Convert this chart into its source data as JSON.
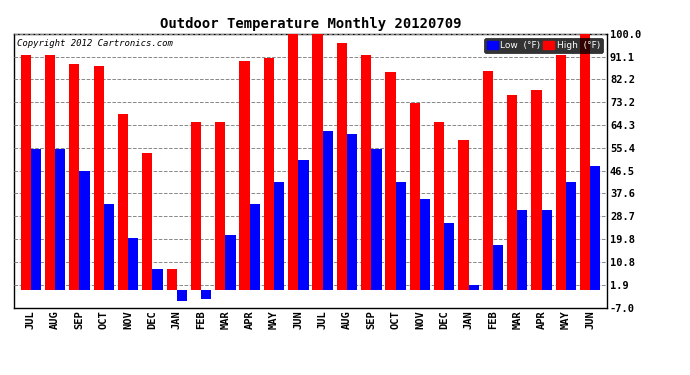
{
  "title": "Outdoor Temperature Monthly 20120709",
  "copyright": "Copyright 2012 Cartronics.com",
  "categories": [
    "JUL",
    "AUG",
    "SEP",
    "OCT",
    "NOV",
    "DEC",
    "JAN",
    "FEB",
    "MAR",
    "APR",
    "MAY",
    "JUN",
    "JUL",
    "AUG",
    "SEP",
    "OCT",
    "NOV",
    "DEC",
    "JAN",
    "FEB",
    "MAR",
    "APR",
    "MAY",
    "JUN"
  ],
  "high_values": [
    91.5,
    91.5,
    88.0,
    87.5,
    68.5,
    53.5,
    8.0,
    65.5,
    65.5,
    89.5,
    90.5,
    102.0,
    103.0,
    96.5,
    91.5,
    85.0,
    73.0,
    65.5,
    58.5,
    85.5,
    76.0,
    78.0,
    91.5,
    100.5
  ],
  "low_values": [
    55.0,
    55.0,
    46.5,
    33.5,
    20.0,
    8.0,
    -4.5,
    -3.5,
    21.5,
    33.5,
    42.0,
    50.5,
    62.0,
    61.0,
    55.0,
    42.0,
    35.5,
    26.0,
    1.9,
    17.5,
    31.0,
    31.0,
    42.0,
    48.5
  ],
  "high_color": "#ff0000",
  "low_color": "#0000ff",
  "bg_color": "#ffffff",
  "plot_bg_color": "#ffffff",
  "grid_color": "#888888",
  "ylim_min": -7.0,
  "ylim_max": 100.0,
  "yticks": [
    100.0,
    91.1,
    82.2,
    73.2,
    64.3,
    55.4,
    46.5,
    37.6,
    28.7,
    19.8,
    10.8,
    1.9,
    -7.0
  ],
  "bar_width": 0.42,
  "legend_low_label": "Low  (°F)",
  "legend_high_label": "High  (°F)"
}
